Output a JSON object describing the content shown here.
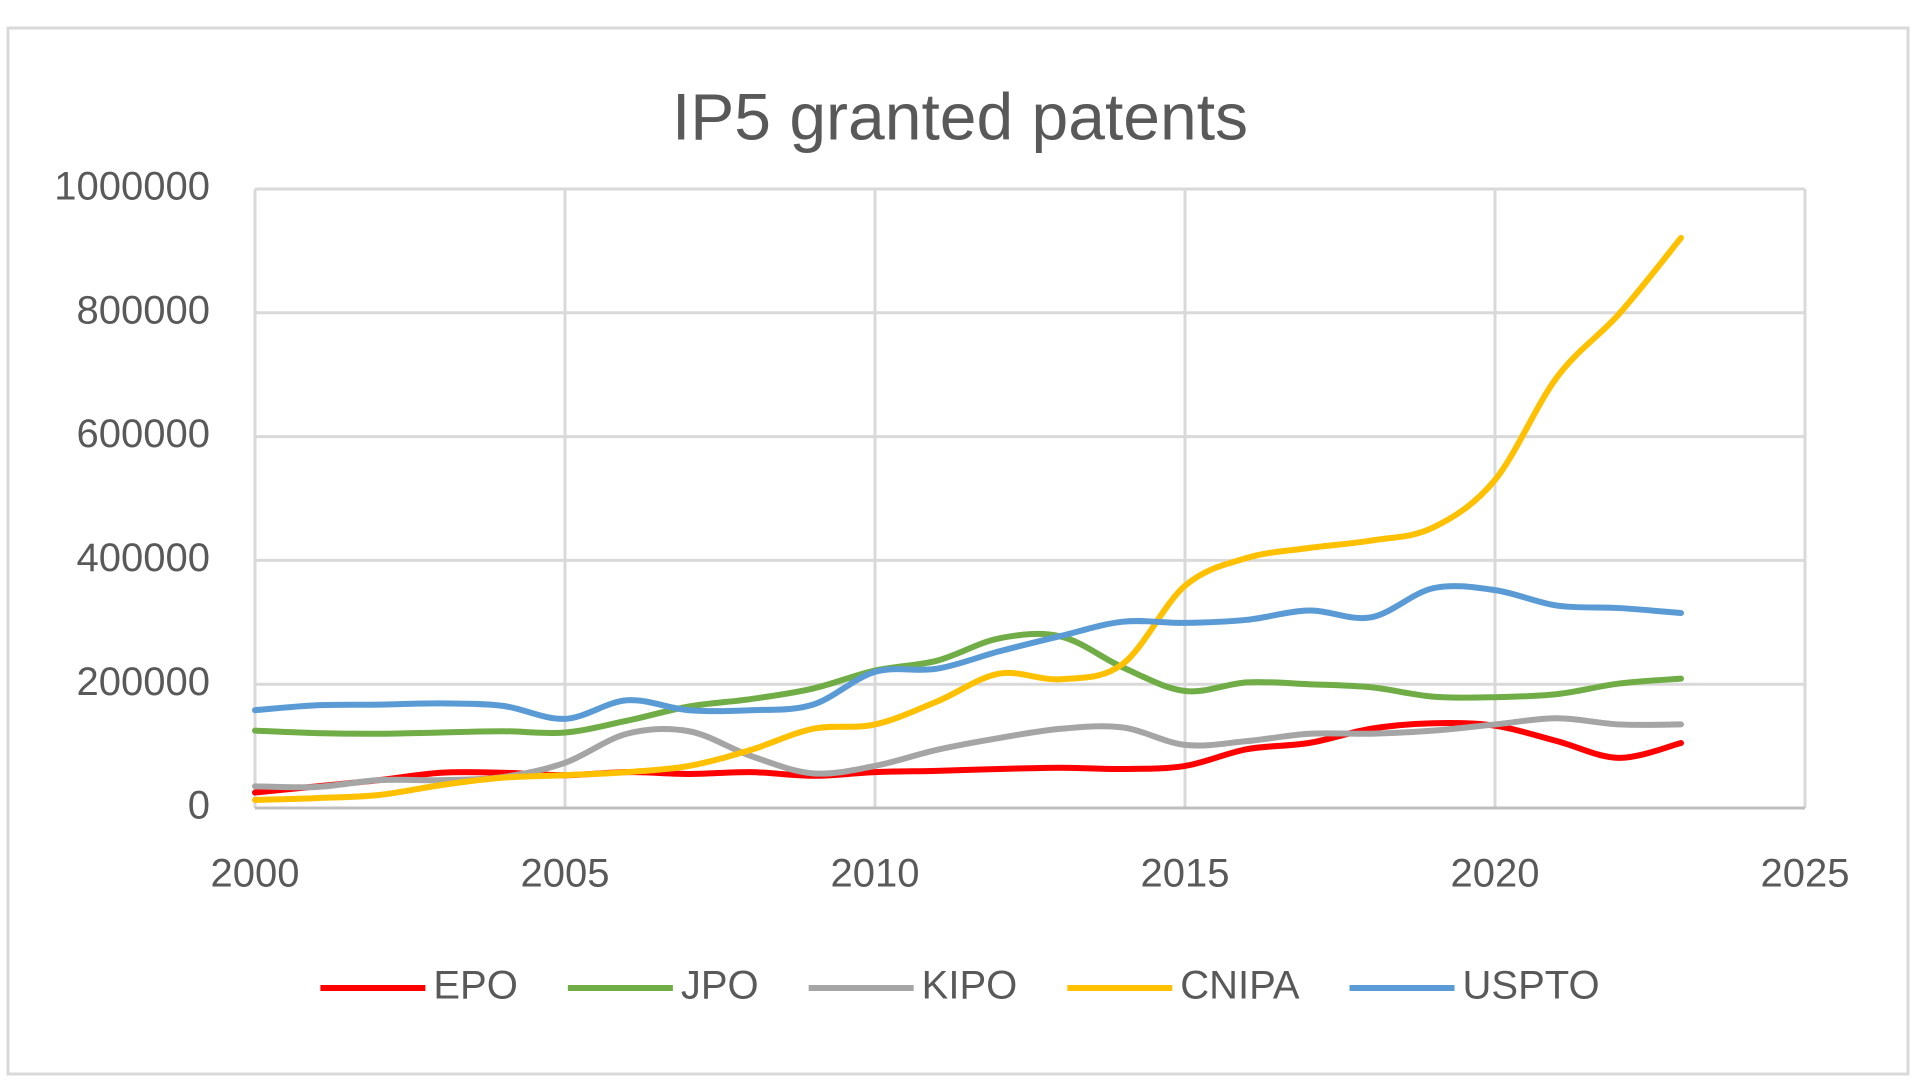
{
  "chart_data": {
    "type": "line",
    "title": "IP5 granted patents",
    "x": [
      2000,
      2001,
      2002,
      2003,
      2004,
      2005,
      2006,
      2007,
      2008,
      2009,
      2010,
      2011,
      2012,
      2013,
      2014,
      2015,
      2016,
      2017,
      2018,
      2019,
      2020,
      2021,
      2022,
      2023
    ],
    "series": [
      {
        "name": "EPO",
        "color": "#ff0000",
        "values": [
          25000,
          35000,
          45000,
          57000,
          57000,
          53000,
          58000,
          55000,
          58000,
          52000,
          58000,
          60000,
          63000,
          65000,
          63000,
          68000,
          95000,
          105000,
          128000,
          137000,
          133000,
          108000,
          81000,
          105000
        ]
      },
      {
        "name": "JPO",
        "color": "#70ad47",
        "values": [
          125000,
          121000,
          120000,
          122000,
          124000,
          122000,
          141000,
          164000,
          176000,
          193000,
          222000,
          238000,
          274000,
          277000,
          227000,
          189000,
          203000,
          200000,
          195000,
          180000,
          179000,
          184000,
          201000,
          209000
        ]
      },
      {
        "name": "KIPO",
        "color": "#a5a5a5",
        "values": [
          35000,
          34000,
          45000,
          45000,
          50000,
          73000,
          120000,
          124000,
          84000,
          56000,
          68000,
          94000,
          113000,
          128000,
          130000,
          102000,
          108000,
          120000,
          120000,
          125000,
          135000,
          145000,
          135000,
          135000
        ]
      },
      {
        "name": "CNIPA",
        "color": "#ffc000",
        "values": [
          13000,
          16000,
          21000,
          37000,
          49000,
          53000,
          58000,
          68000,
          94000,
          128000,
          135000,
          172000,
          217000,
          208000,
          233000,
          359000,
          404000,
          420000,
          432000,
          453000,
          530000,
          696000,
          798000,
          921000
        ]
      },
      {
        "name": "USPTO",
        "color": "#5b9bd5",
        "values": [
          158000,
          166000,
          167000,
          169000,
          165000,
          144000,
          174000,
          158000,
          158000,
          167000,
          220000,
          225000,
          253000,
          278000,
          301000,
          299000,
          304000,
          319000,
          308000,
          355000,
          352000,
          327000,
          323000,
          315000
        ]
      }
    ],
    "xlim": [
      2000,
      2025
    ],
    "xticks": [
      2000,
      2005,
      2010,
      2015,
      2020,
      2025
    ],
    "ylim": [
      0,
      1000000
    ],
    "yticks": [
      0,
      200000,
      400000,
      600000,
      800000,
      1000000
    ],
    "grid": true,
    "legend": "bottom",
    "smooth": true
  }
}
